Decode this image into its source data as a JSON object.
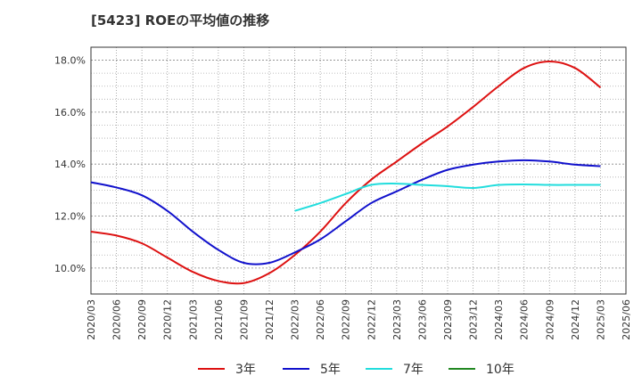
{
  "chart_data": {
    "type": "line",
    "title": "[5423]  ROEの平均値の推移",
    "xlabel": "",
    "ylabel": "",
    "ylim": [
      9.0,
      18.5
    ],
    "y_ticks": [
      10.0,
      12.0,
      14.0,
      16.0,
      18.0
    ],
    "y_tick_labels": [
      "10.0%",
      "12.0%",
      "14.0%",
      "16.0%",
      "18.0%"
    ],
    "x_ticks": [
      "2020/03",
      "2020/06",
      "2020/09",
      "2020/12",
      "2021/03",
      "2021/06",
      "2021/09",
      "2021/12",
      "2022/03",
      "2022/06",
      "2022/09",
      "2022/12",
      "2023/03",
      "2023/06",
      "2023/09",
      "2023/12",
      "2024/03",
      "2024/06",
      "2024/09",
      "2024/12",
      "2025/03",
      "2025/06"
    ],
    "grid": true,
    "legend": "bottom",
    "series": [
      {
        "name": "3年",
        "color": "#dd1111",
        "start_index": 0,
        "values": [
          11.4,
          11.25,
          10.95,
          10.4,
          9.85,
          9.5,
          9.42,
          9.8,
          10.5,
          11.4,
          12.5,
          13.4,
          14.1,
          14.8,
          15.45,
          16.2,
          17.0,
          17.7,
          17.95,
          17.7,
          16.95
        ]
      },
      {
        "name": "5年",
        "color": "#1111cc",
        "start_index": 0,
        "values": [
          13.3,
          13.1,
          12.8,
          12.2,
          11.4,
          10.7,
          10.2,
          10.2,
          10.6,
          11.1,
          11.8,
          12.5,
          12.95,
          13.4,
          13.78,
          13.98,
          14.1,
          14.15,
          14.1,
          13.98,
          13.92
        ]
      },
      {
        "name": "7年",
        "color": "#22dddd",
        "start_index": 8,
        "values": [
          12.2,
          12.5,
          12.85,
          13.2,
          13.25,
          13.2,
          13.15,
          13.08,
          13.2,
          13.22,
          13.2,
          13.2,
          13.2
        ]
      },
      {
        "name": "10年",
        "color": "#228822",
        "start_index": 0,
        "values": []
      }
    ]
  }
}
